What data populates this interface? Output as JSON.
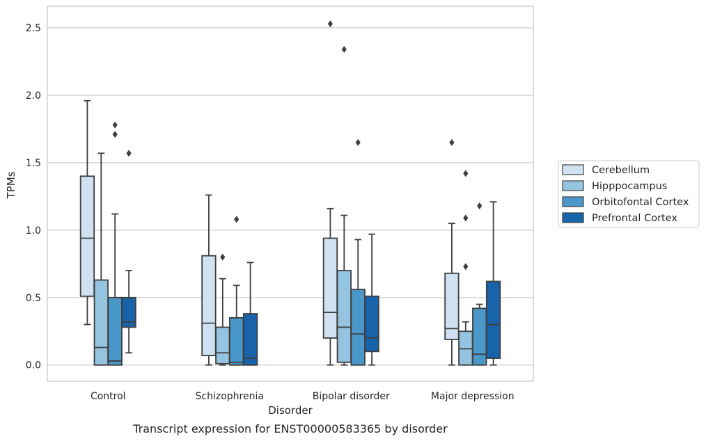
{
  "chart_data": {
    "type": "box",
    "title": "",
    "caption": "Transcript expression for ENST00000583365 by disorder",
    "xlabel": "Disorder",
    "ylabel": "TPMs",
    "ylim": [
      -0.12,
      2.66
    ],
    "yticks": [
      "0.0",
      "0.5",
      "1.0",
      "1.5",
      "2.0",
      "2.5"
    ],
    "grid": true,
    "legend_position": "right",
    "categories": [
      "Control",
      "Schizophrenia",
      "Bipolar disorder",
      "Major depression"
    ],
    "series": [
      {
        "name": "Cerebellum",
        "color": "#d0e1f2",
        "boxes": [
          {
            "whisker_low": 0.3,
            "q1": 0.51,
            "median": 0.94,
            "q3": 1.4,
            "whisker_high": 1.96,
            "outliers": []
          },
          {
            "whisker_low": 0.0,
            "q1": 0.07,
            "median": 0.31,
            "q3": 0.81,
            "whisker_high": 1.26,
            "outliers": []
          },
          {
            "whisker_low": 0.0,
            "q1": 0.2,
            "median": 0.39,
            "q3": 0.94,
            "whisker_high": 1.16,
            "outliers": [
              2.53
            ]
          },
          {
            "whisker_low": 0.0,
            "q1": 0.19,
            "median": 0.27,
            "q3": 0.68,
            "whisker_high": 1.05,
            "outliers": [
              1.65
            ]
          }
        ]
      },
      {
        "name": "Hipppocampus",
        "color": "#94c4df",
        "boxes": [
          {
            "whisker_low": 0.0,
            "q1": 0.0,
            "median": 0.13,
            "q3": 0.63,
            "whisker_high": 1.57,
            "outliers": []
          },
          {
            "whisker_low": 0.0,
            "q1": 0.01,
            "median": 0.09,
            "q3": 0.28,
            "whisker_high": 0.64,
            "outliers": [
              0.8
            ]
          },
          {
            "whisker_low": 0.0,
            "q1": 0.02,
            "median": 0.28,
            "q3": 0.7,
            "whisker_high": 1.11,
            "outliers": [
              2.34
            ]
          },
          {
            "whisker_low": 0.0,
            "q1": 0.0,
            "median": 0.12,
            "q3": 0.25,
            "whisker_high": 0.32,
            "outliers": [
              0.73,
              1.09,
              1.42
            ]
          }
        ]
      },
      {
        "name": "Orbitofontal Cortex",
        "color": "#4a98c9",
        "boxes": [
          {
            "whisker_low": 0.0,
            "q1": 0.0,
            "median": 0.03,
            "q3": 0.5,
            "whisker_high": 1.12,
            "outliers": [
              1.71,
              1.78
            ]
          },
          {
            "whisker_low": 0.0,
            "q1": 0.0,
            "median": 0.02,
            "q3": 0.35,
            "whisker_high": 0.59,
            "outliers": [
              1.08
            ]
          },
          {
            "whisker_low": 0.0,
            "q1": 0.0,
            "median": 0.23,
            "q3": 0.56,
            "whisker_high": 0.93,
            "outliers": [
              1.65
            ]
          },
          {
            "whisker_low": 0.0,
            "q1": 0.0,
            "median": 0.08,
            "q3": 0.42,
            "whisker_high": 0.45,
            "outliers": [
              1.18
            ]
          }
        ]
      },
      {
        "name": "Prefrontal Cortex",
        "color": "#1764ab",
        "boxes": [
          {
            "whisker_low": 0.09,
            "q1": 0.28,
            "median": 0.32,
            "q3": 0.5,
            "whisker_high": 0.7,
            "outliers": [
              1.57
            ]
          },
          {
            "whisker_low": 0.0,
            "q1": 0.0,
            "median": 0.05,
            "q3": 0.38,
            "whisker_high": 0.76,
            "outliers": []
          },
          {
            "whisker_low": 0.0,
            "q1": 0.1,
            "median": 0.2,
            "q3": 0.51,
            "whisker_high": 0.97,
            "outliers": []
          },
          {
            "whisker_low": 0.0,
            "q1": 0.05,
            "median": 0.3,
            "q3": 0.62,
            "whisker_high": 1.21,
            "outliers": []
          }
        ]
      }
    ]
  }
}
